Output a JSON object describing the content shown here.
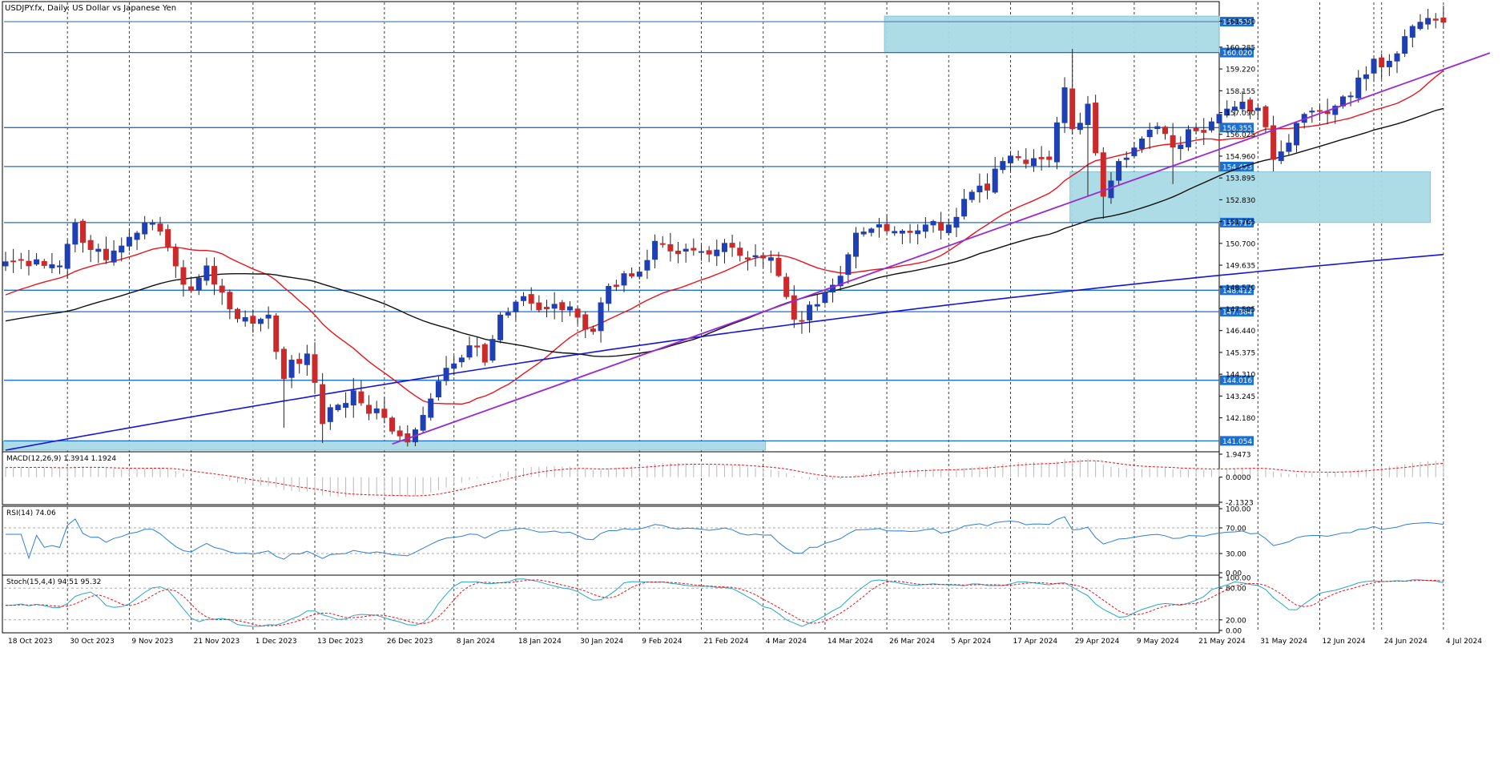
{
  "chart_data": {
    "type": "candlestick",
    "title": "USDJPY.fx, Daily:  US Dollar vs Japanese Yen",
    "colors": {
      "bull": "#1f3fb5",
      "bear": "#cc2a2a",
      "ma_fast": "#e8141c",
      "ma_mid": "#111111",
      "ma_slow": "#1515d9",
      "trendline": "#9a2bd0",
      "hlines": "#1a6fd4",
      "zone": "#a9dbe6",
      "grid": "#000000",
      "price_tag_bg": "#1a6fd4"
    },
    "y_ticks": [
      "161.550",
      "160.285",
      "159.220",
      "158.155",
      "157.090",
      "156.025",
      "154.960",
      "153.895",
      "152.830",
      "151.765",
      "150.700",
      "149.635",
      "148.570",
      "147.505",
      "146.440",
      "145.375",
      "144.310",
      "143.245",
      "142.180"
    ],
    "ylim": [
      140.6,
      162.0
    ],
    "x_tick_labels": [
      "18 Oct 2023",
      "30 Oct 2023",
      "9 Nov 2023",
      "21 Nov 2023",
      "1 Dec 2023",
      "13 Dec 2023",
      "26 Dec 2023",
      "8 Jan 2024",
      "18 Jan 2024",
      "30 Jan 2024",
      "9 Feb 2024",
      "21 Feb 2024",
      "4 Mar 2024",
      "14 Mar 2024",
      "26 Mar 2024",
      "5 Apr 2024",
      "17 Apr 2024",
      "29 Apr 2024",
      "9 May 2024",
      "21 May 2024",
      "31 May 2024",
      "12 Jun 2024",
      "24 Jun 2024",
      "4 Jul 2024"
    ],
    "levels": [
      {
        "label": "161.529"
      },
      {
        "label": "160.020"
      },
      {
        "label": "156.355"
      },
      {
        "label": "154.453"
      },
      {
        "label": "151.715"
      },
      {
        "label": "148.412"
      },
      {
        "label": "147.364"
      },
      {
        "label": "144.016"
      },
      {
        "label": "141.054"
      }
    ],
    "zones": [
      {
        "from_date": "26 Mar 2024",
        "to_date": "right edge",
        "low": 160.02,
        "high": 161.8
      },
      {
        "from_date": "29 Apr 2024",
        "to_date": "2 Jul 2024",
        "low": 151.72,
        "high": 154.2
      },
      {
        "from_date": "18 Oct 2023",
        "to_date": "4 Mar 2024",
        "low": 140.6,
        "high": 141.054
      }
    ],
    "trendline": {
      "from": [
        "27 Dec 2023",
        140.9
      ],
      "to": [
        "15 Jul 2024",
        160.0
      ]
    },
    "close_anchors": [
      [
        "18 Oct 2023",
        149.8
      ],
      [
        "24 Oct 2023",
        149.9
      ],
      [
        "27 Oct 2023",
        149.6
      ],
      [
        "31 Oct 2023",
        151.7
      ],
      [
        "2 Nov 2023",
        150.4
      ],
      [
        "6 Nov 2023",
        149.9
      ],
      [
        "9 Nov 2023",
        151.0
      ],
      [
        "13 Nov 2023",
        151.7
      ],
      [
        "15 Nov 2023",
        151.3
      ],
      [
        "17 Nov 2023",
        149.6
      ],
      [
        "21 Nov 2023",
        148.4
      ],
      [
        "23 Nov 2023",
        149.6
      ],
      [
        "28 Nov 2023",
        147.5
      ],
      [
        "1 Dec 2023",
        146.8
      ],
      [
        "5 Dec 2023",
        147.2
      ],
      [
        "7 Dec 2023",
        144.1
      ],
      [
        "8 Dec 2023",
        145.0
      ],
      [
        "12 Dec 2023",
        145.3
      ],
      [
        "14 Dec 2023",
        141.9
      ],
      [
        "18 Dec 2023",
        142.8
      ],
      [
        "20 Dec 2023",
        143.5
      ],
      [
        "22 Dec 2023",
        142.4
      ],
      [
        "26 Dec 2023",
        142.2
      ],
      [
        "28 Dec 2023",
        141.3
      ],
      [
        "29 Dec 2023",
        141.0
      ],
      [
        "2 Jan 2024",
        142.3
      ],
      [
        "5 Jan 2024",
        144.6
      ],
      [
        "10 Jan 2024",
        145.7
      ],
      [
        "12 Jan 2024",
        144.9
      ],
      [
        "16 Jan 2024",
        147.2
      ],
      [
        "19 Jan 2024",
        148.1
      ],
      [
        "24 Jan 2024",
        147.5
      ],
      [
        "29 Jan 2024",
        147.6
      ],
      [
        "1 Feb 2024",
        146.4
      ],
      [
        "5 Feb 2024",
        148.6
      ],
      [
        "9 Feb 2024",
        149.3
      ],
      [
        "13 Feb 2024",
        150.8
      ],
      [
        "16 Feb 2024",
        150.2
      ],
      [
        "21 Feb 2024",
        150.3
      ],
      [
        "26 Feb 2024",
        150.7
      ],
      [
        "1 Mar 2024",
        150.1
      ],
      [
        "5 Mar 2024",
        150.0
      ],
      [
        "8 Mar 2024",
        147.0
      ],
      [
        "11 Mar 2024",
        146.9
      ],
      [
        "14 Mar 2024",
        148.3
      ],
      [
        "18 Mar 2024",
        149.1
      ],
      [
        "20 Mar 2024",
        151.2
      ],
      [
        "22 Mar 2024",
        151.4
      ],
      [
        "28 Mar 2024",
        151.3
      ],
      [
        "2 Apr 2024",
        151.6
      ],
      [
        "5 Apr 2024",
        151.6
      ],
      [
        "10 Apr 2024",
        153.2
      ],
      [
        "12 Apr 2024",
        153.3
      ],
      [
        "16 Apr 2024",
        154.7
      ],
      [
        "19 Apr 2024",
        154.6
      ],
      [
        "24 Apr 2024",
        154.8
      ],
      [
        "26 Apr 2024",
        158.3
      ],
      [
        "29 Apr 2024",
        156.3
      ],
      [
        "1 May 2024",
        157.5
      ],
      [
        "3 May 2024",
        153.0
      ],
      [
        "7 May 2024",
        154.7
      ],
      [
        "10 May 2024",
        155.8
      ],
      [
        "14 May 2024",
        156.4
      ],
      [
        "16 May 2024",
        155.4
      ],
      [
        "21 May 2024",
        156.2
      ],
      [
        "24 May 2024",
        157.0
      ],
      [
        "29 May 2024",
        157.6
      ],
      [
        "31 May 2024",
        157.3
      ],
      [
        "4 Jun 2024",
        154.8
      ],
      [
        "6 Jun 2024",
        155.6
      ],
      [
        "10 Jun 2024",
        157.0
      ],
      [
        "14 Jun 2024",
        157.4
      ],
      [
        "18 Jun 2024",
        157.9
      ],
      [
        "21 Jun 2024",
        159.7
      ],
      [
        "25 Jun 2024",
        159.6
      ],
      [
        "27 Jun 2024",
        160.8
      ],
      [
        "1 Jul 2024",
        161.5
      ],
      [
        "3 Jul 2024",
        161.6
      ],
      [
        "4 Jul 2024",
        161.5
      ]
    ],
    "macd": {
      "label": "MACD(12,26,9) 1.3914 1.1924",
      "ticks": [
        "1.9473",
        "0.0000",
        "-2.1323"
      ],
      "ylim": [
        -2.1323,
        1.9473
      ]
    },
    "rsi": {
      "label": "RSI(14) 74.06",
      "ticks": [
        "100.00",
        "70.00",
        "30.00",
        "0.00"
      ],
      "ylim": [
        0,
        100
      ],
      "levels": [
        70,
        30
      ]
    },
    "stoch": {
      "label": "Stoch(15,4,4) 94.51 95.32",
      "ticks": [
        "100.00",
        "80.00",
        "20.00",
        "0.00"
      ],
      "ylim": [
        0,
        100
      ],
      "levels": [
        80,
        20
      ]
    }
  }
}
